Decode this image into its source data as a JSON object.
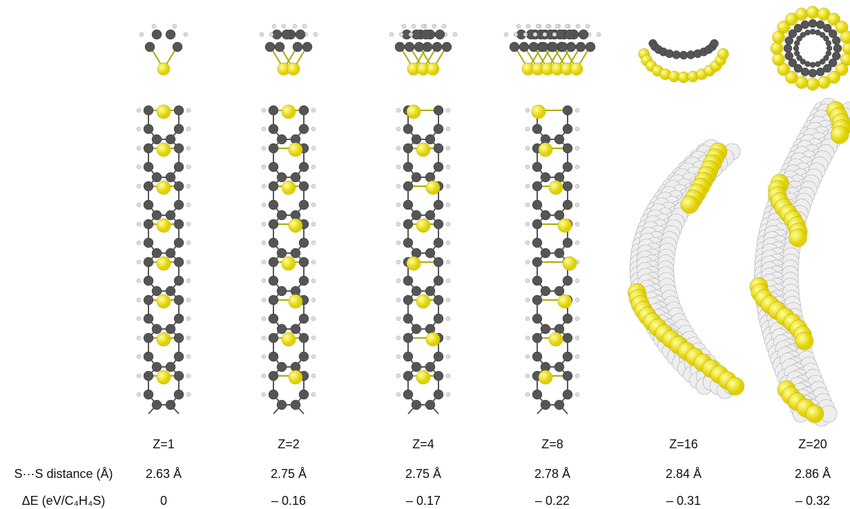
{
  "row_labels": {
    "distance": "S···S distance (Å)",
    "energy": "ΔE (eV/C₄H₄S)"
  },
  "columns": [
    {
      "z": "Z=1",
      "distance": "2.63 Å",
      "energy": "0"
    },
    {
      "z": "Z=2",
      "distance": "2.75 Å",
      "energy": "– 0.16"
    },
    {
      "z": "Z=4",
      "distance": "2.75 Å",
      "energy": "– 0.17"
    },
    {
      "z": "Z=8",
      "distance": "2.78 Å",
      "energy": "– 0.22"
    },
    {
      "z": "Z=16",
      "distance": "2.84 Å",
      "energy": "– 0.31"
    },
    {
      "z": "Z=20",
      "distance": "2.86 Å",
      "energy": "– 0.32"
    }
  ]
}
